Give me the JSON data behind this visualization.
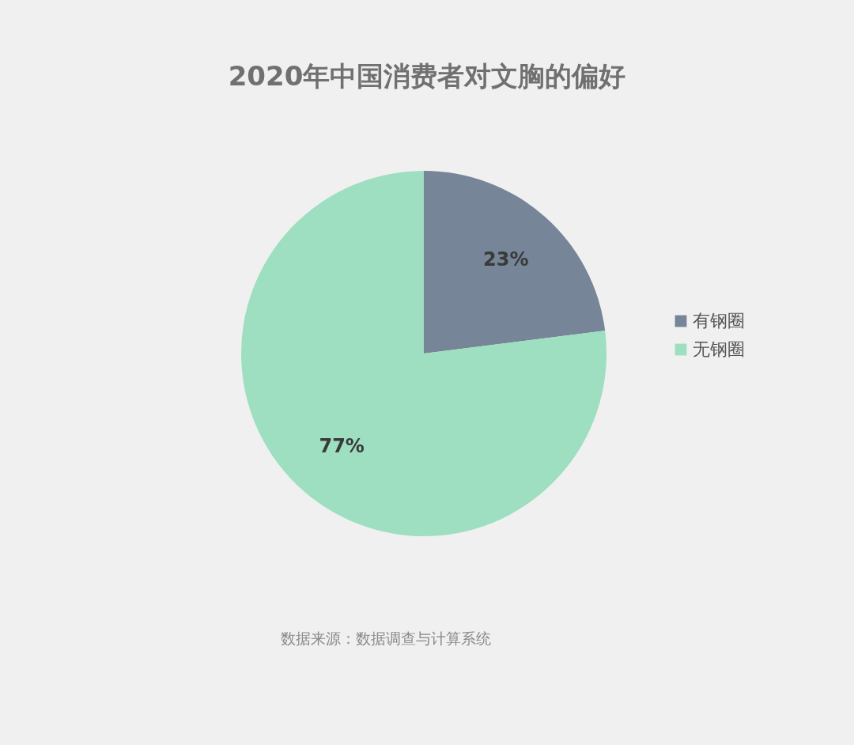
{
  "chart_data": {
    "type": "pie",
    "title": "2020年中国消费者对文胸的偏好",
    "categories": [
      "有钢圈",
      "无钢圈"
    ],
    "values": [
      23,
      77
    ],
    "colors": [
      "#768598",
      "#9ddfc0"
    ],
    "value_labels": [
      "23%",
      "77%"
    ],
    "legend": "right",
    "annotations": [
      "数据来源：数据调查与计算系统"
    ]
  }
}
